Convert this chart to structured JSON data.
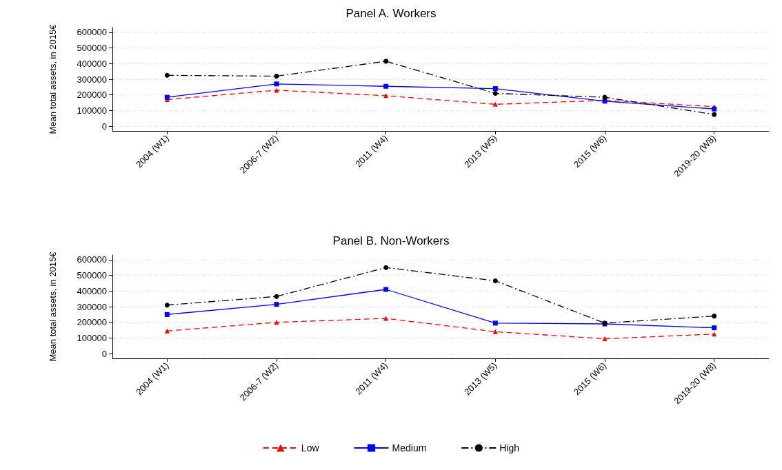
{
  "chart_data": [
    {
      "type": "line",
      "title": "Panel A. Workers",
      "ylabel": "Mean total assets, in 2015€",
      "categories": [
        "2004 (W1)",
        "2006-7 (W2)",
        "2011 (W4)",
        "2013 (W5)",
        "2015 (W6)",
        "2019-20 (W8)"
      ],
      "ylim": [
        -30000,
        630000
      ],
      "yticks": [
        0,
        100000,
        200000,
        300000,
        400000,
        500000,
        600000
      ],
      "grid": "y",
      "series": [
        {
          "color": "#ff0000",
          "marker": "triangle",
          "line_style": "dashed",
          "values": [
            170000,
            230000,
            195000,
            140000,
            165000,
            125000
          ]
        },
        {
          "color": "#0000ff",
          "marker": "square",
          "line_style": "solid",
          "values": [
            185000,
            270000,
            255000,
            240000,
            160000,
            110000
          ]
        },
        {
          "color": "#000000",
          "marker": "circle",
          "line_style": "dashdot",
          "values": [
            325000,
            320000,
            415000,
            210000,
            185000,
            75000
          ]
        }
      ]
    },
    {
      "type": "line",
      "title": "Panel B. Non-Workers",
      "ylabel": "Mean total assets, in 2015€",
      "categories": [
        "2004 (W1)",
        "2006-7 (W2)",
        "2011 (W4)",
        "2013 (W5)",
        "2015 (W6)",
        "2019-20 (W8)"
      ],
      "ylim": [
        -30000,
        630000
      ],
      "yticks": [
        0,
        100000,
        200000,
        300000,
        400000,
        500000,
        600000
      ],
      "grid": "y",
      "legend": "bottom",
      "series": [
        {
          "name": "Low",
          "color": "#ff0000",
          "marker": "triangle",
          "line_style": "dashed",
          "values": [
            145000,
            200000,
            225000,
            140000,
            95000,
            125000
          ]
        },
        {
          "name": "Medium",
          "color": "#0000ff",
          "marker": "square",
          "line_style": "solid",
          "values": [
            250000,
            315000,
            410000,
            195000,
            190000,
            165000
          ]
        },
        {
          "name": "High",
          "color": "#000000",
          "marker": "circle",
          "line_style": "dashdot",
          "values": [
            310000,
            365000,
            550000,
            465000,
            195000,
            240000
          ]
        }
      ]
    }
  ]
}
